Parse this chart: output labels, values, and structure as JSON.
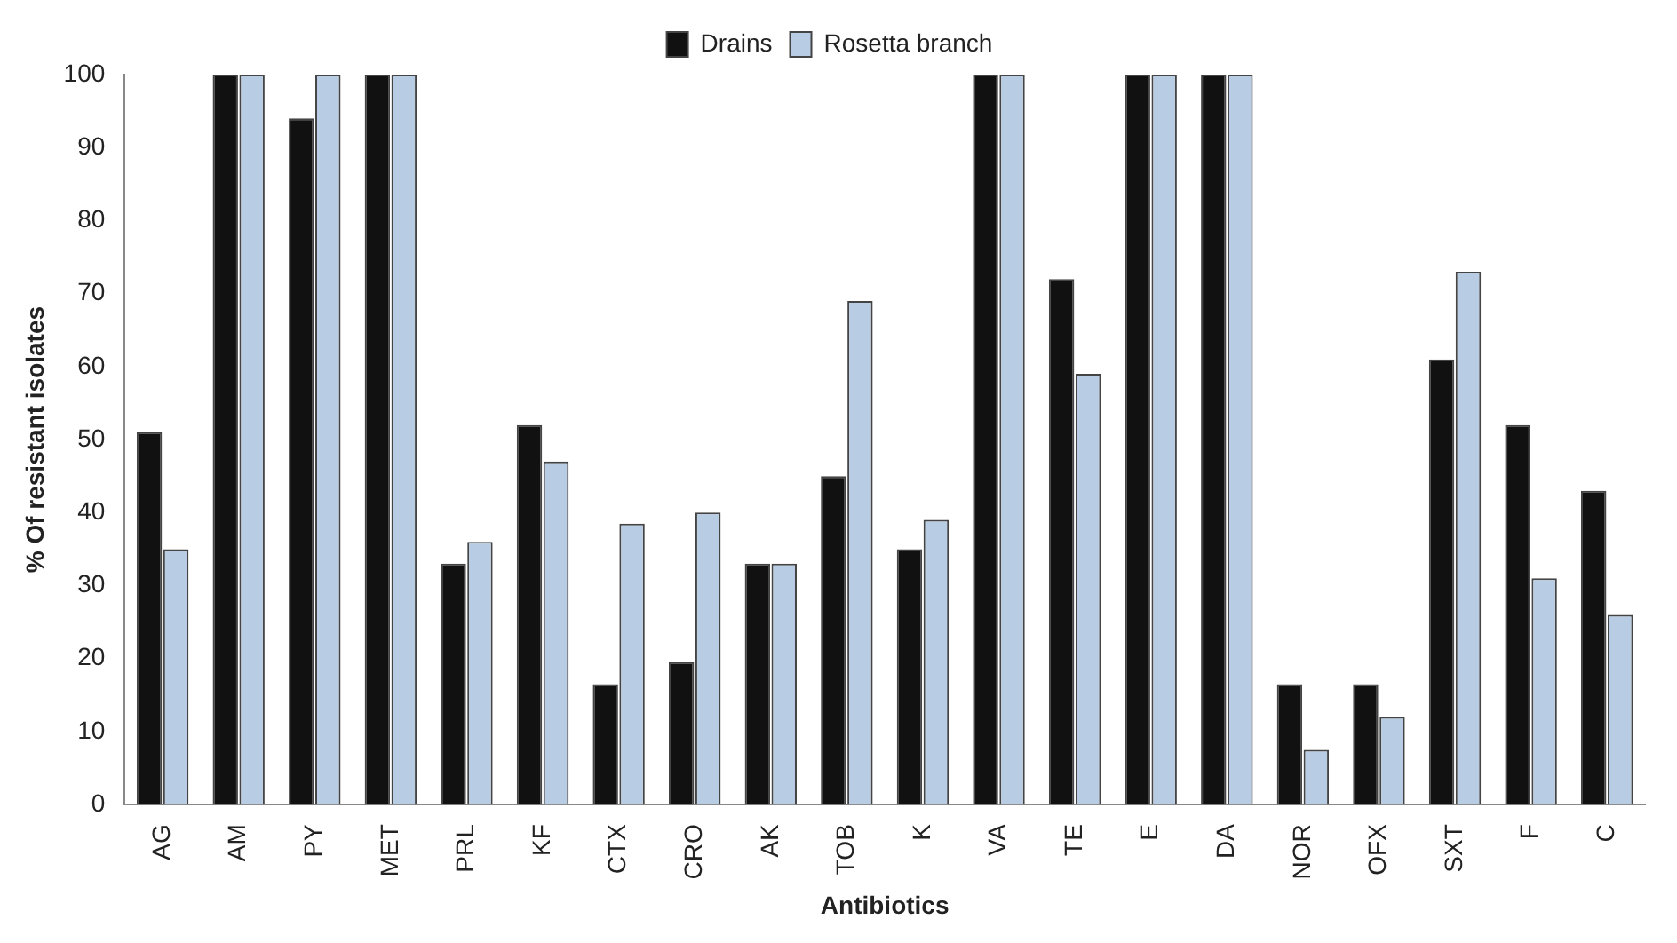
{
  "chart_data": {
    "type": "bar",
    "xlabel": "Antibiotics",
    "ylabel": "% Of resistant isolates",
    "categories": [
      "AG",
      "AM",
      "PY",
      "MET",
      "PRL",
      "KF",
      "CTX",
      "CRO",
      "AK",
      "TOB",
      "K",
      "VA",
      "TE",
      "E",
      "DA",
      "NOR",
      "OFX",
      "SXT",
      "F",
      "C"
    ],
    "series": [
      {
        "name": "Drains",
        "color": "#111111",
        "values": [
          51,
          100,
          94,
          100,
          33,
          52,
          16.5,
          19.5,
          33,
          45,
          35,
          100,
          72,
          100,
          100,
          16.5,
          16.5,
          61,
          52,
          43
        ]
      },
      {
        "name": "Rosetta branch",
        "color": "#b8cce4",
        "values": [
          35,
          100,
          100,
          100,
          36,
          47,
          38.5,
          40,
          33,
          69,
          39,
          100,
          59,
          100,
          100,
          7.5,
          12,
          73,
          31,
          26
        ]
      }
    ],
    "ylim": [
      0,
      100
    ],
    "yticks": [
      0,
      10,
      20,
      30,
      40,
      50,
      60,
      70,
      80,
      90,
      100
    ],
    "grid": false,
    "legend": "top"
  }
}
